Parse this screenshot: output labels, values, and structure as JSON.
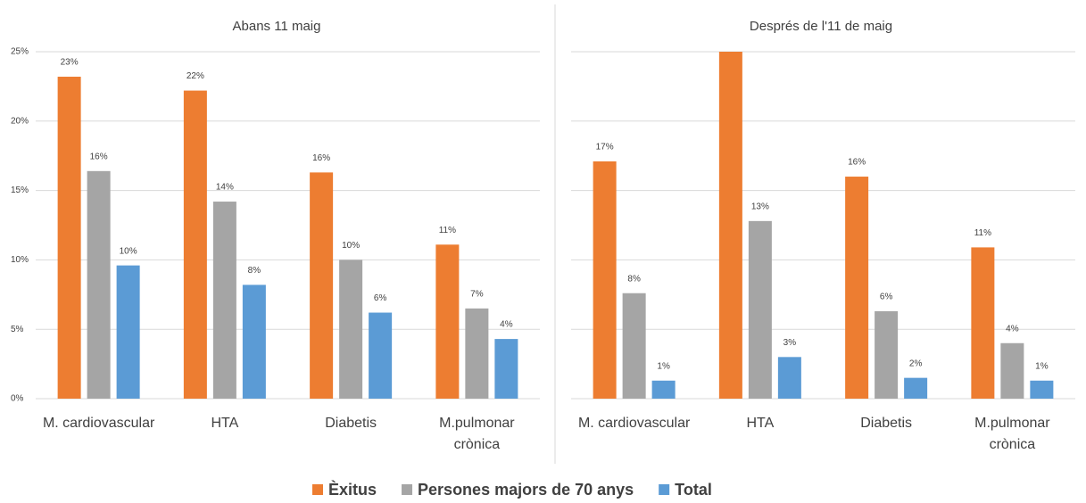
{
  "chart_data": [
    {
      "type": "bar",
      "title": "Abans 11 maig",
      "categories": [
        "M. cardiovascular",
        "HTA",
        "Diabetis",
        "M.pulmonar crònica"
      ],
      "series": [
        {
          "name": "Èxitus",
          "color": "#ed7d31",
          "values": [
            23.2,
            22.2,
            16.3,
            11.1
          ],
          "value_labels": [
            "23%",
            "22%",
            "16%",
            "11%"
          ]
        },
        {
          "name": "Persones majors de 70 anys",
          "color": "#a5a5a5",
          "values": [
            16.4,
            14.2,
            10.0,
            6.5
          ],
          "value_labels": [
            "16%",
            "14%",
            "10%",
            "7%"
          ]
        },
        {
          "name": "Total",
          "color": "#5b9bd5",
          "values": [
            9.6,
            8.2,
            6.2,
            4.3
          ],
          "value_labels": [
            "10%",
            "8%",
            "6%",
            "4%"
          ]
        }
      ],
      "ylim": [
        0,
        25
      ],
      "yticks": [
        {
          "value": 0,
          "label": "0%"
        },
        {
          "value": 5,
          "label": "5%"
        },
        {
          "value": 10,
          "label": "10%"
        },
        {
          "value": 15,
          "label": "15%"
        },
        {
          "value": 20,
          "label": "20%"
        },
        {
          "value": 25,
          "label": "25%"
        }
      ],
      "grid": true,
      "ytick_labels": true
    },
    {
      "type": "bar",
      "title": "Després de l'11 de maig",
      "categories": [
        "M. cardiovascular",
        "HTA",
        "Diabetis",
        "M.pulmonar crònica"
      ],
      "series": [
        {
          "name": "Èxitus",
          "color": "#ed7d31",
          "values": [
            17.1,
            25,
            16.0,
            10.9
          ],
          "value_labels": [
            "17%",
            null,
            "16%",
            "11%"
          ]
        },
        {
          "name": "Persones majors de 70 anys",
          "color": "#a5a5a5",
          "values": [
            7.6,
            12.8,
            6.3,
            4.0
          ],
          "value_labels": [
            "8%",
            "13%",
            "6%",
            "4%"
          ]
        },
        {
          "name": "Total",
          "color": "#5b9bd5",
          "values": [
            1.3,
            3.0,
            1.5,
            1.3
          ],
          "value_labels": [
            "1%",
            "3%",
            "2%",
            "1%"
          ]
        }
      ],
      "ylim": [
        0,
        25
      ],
      "yticks": [
        0,
        5,
        10,
        15,
        20,
        25
      ],
      "grid": true,
      "ytick_labels": false
    }
  ]
}
